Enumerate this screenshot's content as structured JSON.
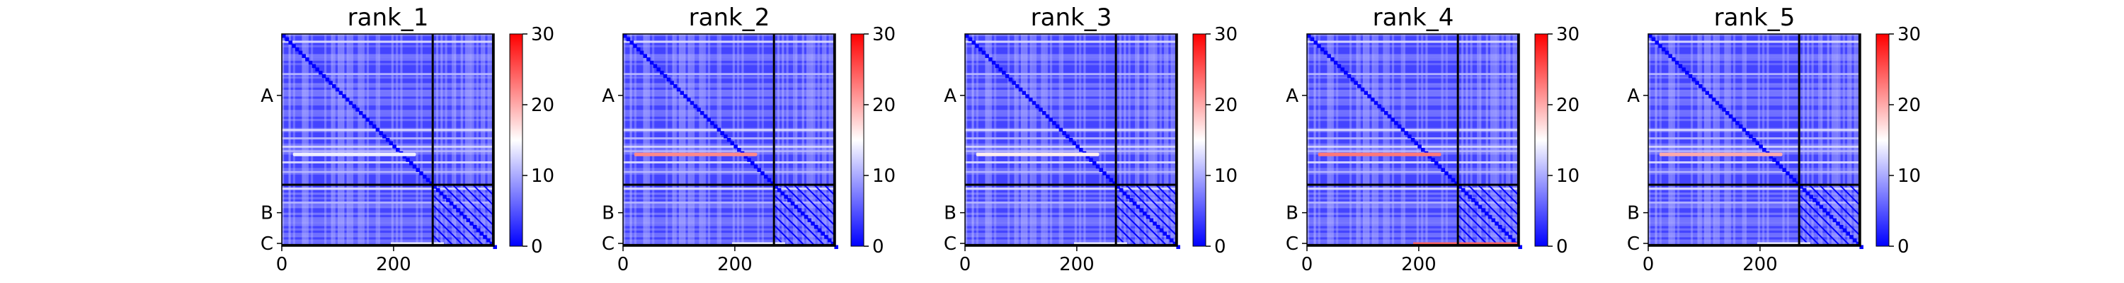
{
  "chart_data": [
    {
      "type": "heatmap",
      "title": "rank_1",
      "xticks": [
        0,
        200
      ],
      "yticks": [
        "A",
        "B",
        "C"
      ],
      "colorbar": {
        "ticks": [
          0,
          10,
          20,
          30
        ],
        "range": [
          0,
          30
        ],
        "cmap": "bwr"
      },
      "chain_boundaries": [
        270,
        378
      ],
      "grid_size": 380,
      "hot_rows": [
        {
          "row": 215,
          "range": [
            20,
            240
          ],
          "value": 14
        }
      ],
      "hot_bands": [
        {
          "range": [
            195,
            290
          ],
          "row": 373,
          "value": 14
        }
      ]
    },
    {
      "type": "heatmap",
      "title": "rank_2",
      "xticks": [
        0,
        200
      ],
      "yticks": [
        "A",
        "B",
        "C"
      ],
      "colorbar": {
        "ticks": [
          0,
          10,
          20,
          30
        ],
        "range": [
          0,
          30
        ],
        "cmap": "bwr"
      },
      "chain_boundaries": [
        270,
        378
      ],
      "grid_size": 380,
      "hot_rows": [
        {
          "row": 215,
          "range": [
            20,
            240
          ],
          "value": 22
        }
      ],
      "hot_bands": [
        {
          "range": [
            195,
            290
          ],
          "row": 373,
          "value": 14
        }
      ]
    },
    {
      "type": "heatmap",
      "title": "rank_3",
      "xticks": [
        0,
        200
      ],
      "yticks": [
        "A",
        "B",
        "C"
      ],
      "colorbar": {
        "ticks": [
          0,
          10,
          20,
          30
        ],
        "range": [
          0,
          30
        ],
        "cmap": "bwr"
      },
      "chain_boundaries": [
        270,
        378
      ],
      "grid_size": 380,
      "hot_rows": [
        {
          "row": 215,
          "range": [
            20,
            240
          ],
          "value": 16
        }
      ],
      "hot_bands": [
        {
          "range": [
            195,
            290
          ],
          "row": 373,
          "value": 14
        }
      ]
    },
    {
      "type": "heatmap",
      "title": "rank_4",
      "xticks": [
        0,
        200
      ],
      "yticks": [
        "A",
        "B",
        "C"
      ],
      "colorbar": {
        "ticks": [
          0,
          10,
          20,
          30
        ],
        "range": [
          0,
          30
        ],
        "cmap": "bwr"
      },
      "chain_boundaries": [
        270,
        378
      ],
      "grid_size": 380,
      "hot_rows": [
        {
          "row": 215,
          "range": [
            20,
            240
          ],
          "value": 23
        }
      ],
      "hot_bands": [
        {
          "range": [
            190,
            380
          ],
          "row": 373,
          "value": 24
        }
      ]
    },
    {
      "type": "heatmap",
      "title": "rank_5",
      "xticks": [
        0,
        200
      ],
      "yticks": [
        "A",
        "B",
        "C"
      ],
      "colorbar": {
        "ticks": [
          0,
          10,
          20,
          30
        ],
        "range": [
          0,
          30
        ],
        "cmap": "bwr"
      },
      "chain_boundaries": [
        270,
        378
      ],
      "grid_size": 380,
      "hot_rows": [
        {
          "row": 215,
          "range": [
            20,
            240
          ],
          "value": 20
        }
      ],
      "hot_bands": [
        {
          "range": [
            195,
            290
          ],
          "row": 373,
          "value": 14
        }
      ]
    }
  ]
}
